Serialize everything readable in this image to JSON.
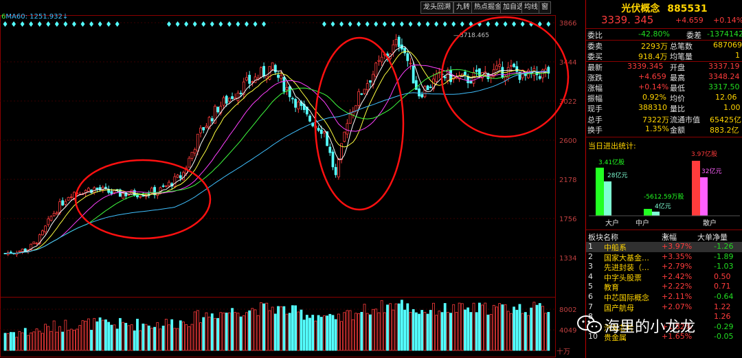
{
  "toolbar": {
    "buttons": [
      "龙头回溯",
      "九转",
      "热点掘金",
      "加自选",
      "均线",
      "窗"
    ]
  },
  "chart": {
    "ma_label": "MA60: 1251.932",
    "ma_prefix": "6",
    "peak_label": "3718.465",
    "y_axis_upper": [
      "3866",
      "3444",
      "3022",
      "2600",
      "2178",
      "1756",
      "1334"
    ],
    "y_axis_lower": [
      "8002",
      "4049"
    ],
    "unit_label": "十万",
    "colors": {
      "up": "#ff3c3c",
      "down": "#54ffff",
      "ma5": "#ffffff",
      "ma10": "#ffff40",
      "ma20": "#ff40ff",
      "ma30": "#40ff40",
      "ma60": "#40c0ff"
    }
  },
  "header": {
    "name": "光伏概念",
    "code": "885531",
    "price": "3339. 345",
    "change": "+4.659",
    "pct": "+0.14%"
  },
  "quote": {
    "wb_label": "委比",
    "wb": "-42.80%",
    "wc_label": "委差",
    "wc": "-1374142",
    "ws_label": "委卖",
    "ws": "2293万",
    "zs_label": "总笔数",
    "zs": "687069",
    "wm_label": "委买",
    "wmv": "918.4万",
    "jbl_label": "均笔量",
    "jbl": "1",
    "zx_label": "最新",
    "zx": "3339.345",
    "kp_label": "开盘",
    "kp": "3337.19",
    "zd_label": "涨跌",
    "zd": "+4.659",
    "zg_label": "最高",
    "zg": "3348.24",
    "zf_label": "涨幅",
    "zf": "+0.14%",
    "zdi_label": "最低",
    "zdi": "3317.50",
    "zhf_label": "振幅",
    "zhf": "0.92%",
    "jj_label": "均价",
    "jj": "12.06",
    "xs_label": "现手",
    "xs": "388310",
    "lb_label": "量比",
    "lb": "1.00",
    "zsh_label": "总手",
    "zsh": "7322万",
    "lt_label": "流通市值",
    "lt": "65425亿",
    "hs_label": "换手",
    "hs": "1.35%",
    "je_label": "金额",
    "je": "883.2亿"
  },
  "flow": {
    "title": "当日进出统计:",
    "big_out": "3.41亿股",
    "big_amt": "28亿元",
    "mid_out": "-5612.59万股",
    "mid_amt": "4亿元",
    "small_out": "3.97亿股",
    "small_amt": "32亿元",
    "big_label": "大户",
    "mid_label": "中户",
    "small_label": "散户"
  },
  "rank": {
    "col_name": "板块名称",
    "col_pct": "涨幅",
    "col_net": "大单净量",
    "rows": [
      {
        "no": "1",
        "name": "中船系",
        "pct": "+3.97%",
        "net": "-1.26"
      },
      {
        "no": "2",
        "name": "国家大基金…",
        "pct": "+3.35%",
        "net": "-1.89"
      },
      {
        "no": "3",
        "name": "先进封装（…",
        "pct": "+2.79%",
        "net": "-1.03"
      },
      {
        "no": "4",
        "name": "中字头股票",
        "pct": "+2.42%",
        "net": "0.50"
      },
      {
        "no": "5",
        "name": "教育",
        "pct": "+2.22%",
        "net": "0.71"
      },
      {
        "no": "6",
        "name": "中芯国际概念",
        "pct": "+2.11%",
        "net": "-0.64"
      },
      {
        "no": "7",
        "name": "国产航母",
        "pct": "+2.07%",
        "net": "1.22"
      },
      {
        "no": "8",
        "name": "",
        "pct": "",
        "net": "1.26"
      },
      {
        "no": "9",
        "name": "汽车芯片",
        "pct": "+1.82%",
        "net": "-0.29"
      },
      {
        "no": "10",
        "name": "贵金属",
        "pct": "+1.65%",
        "net": "-0.05"
      }
    ]
  },
  "watermark": "海里的小龙龙"
}
